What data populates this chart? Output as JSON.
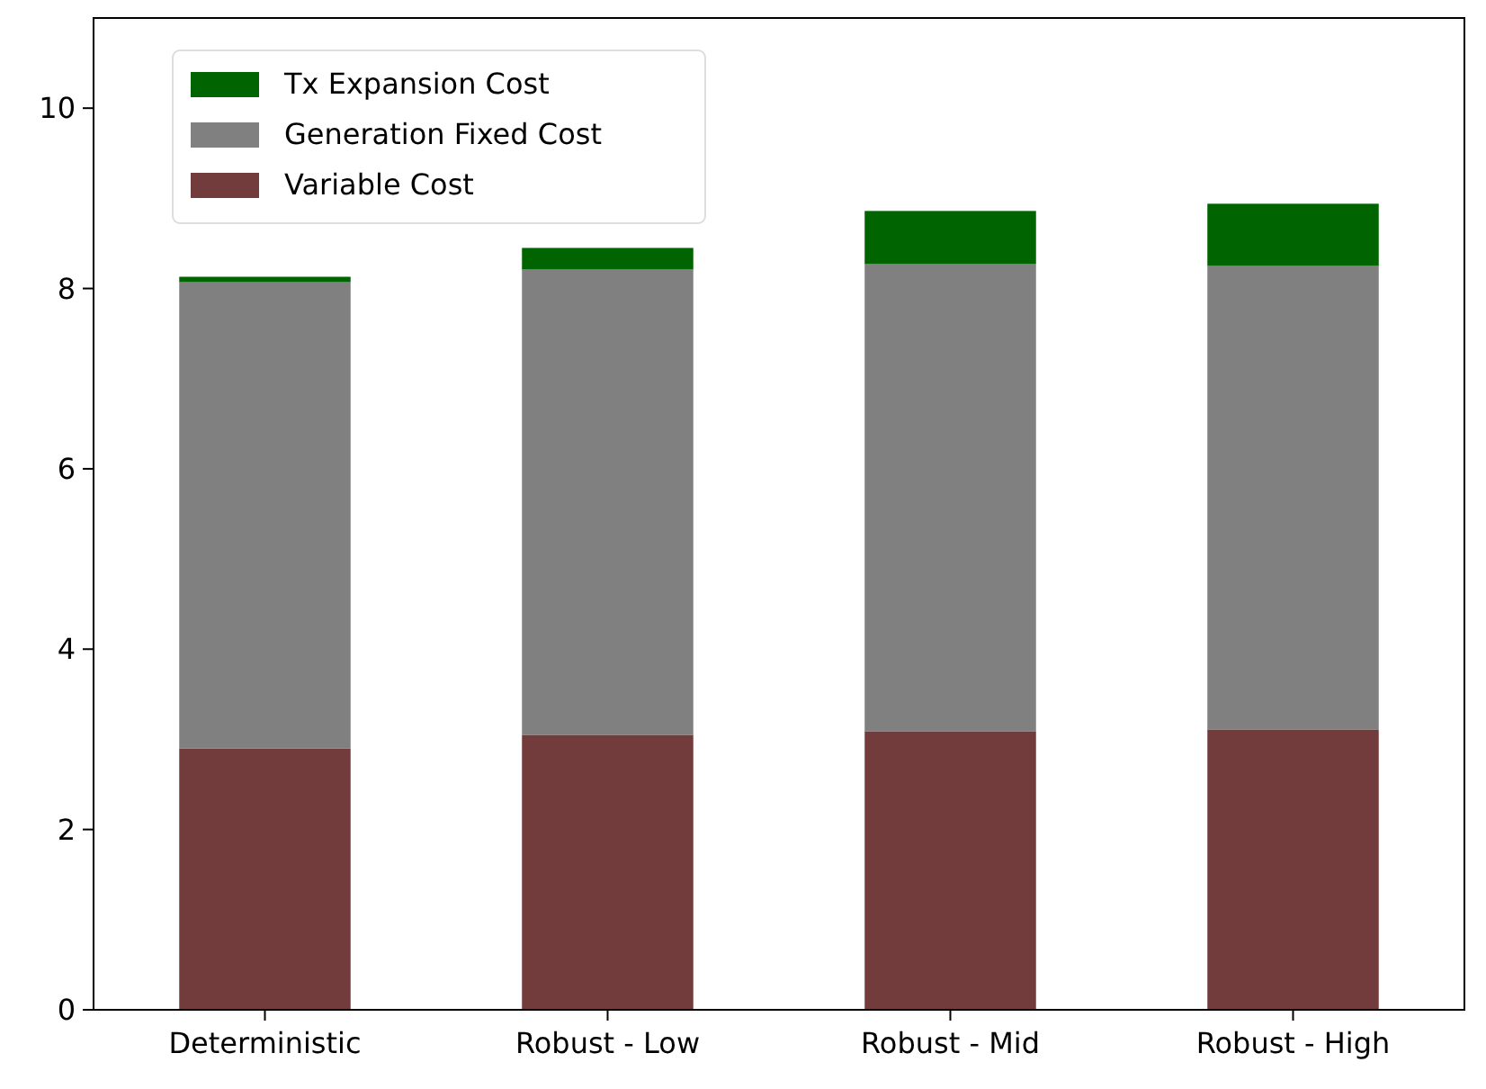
{
  "chart_data": {
    "type": "bar",
    "stacked": true,
    "categories": [
      "Deterministic",
      "Robust - Low",
      "Robust - Mid",
      "Robust - High"
    ],
    "series": [
      {
        "name": "Variable Cost",
        "color": "#733c3c",
        "values": [
          2.9,
          3.05,
          3.09,
          3.11
        ]
      },
      {
        "name": "Generation Fixed Cost",
        "color": "#808080",
        "values": [
          5.17,
          5.16,
          5.18,
          5.14
        ]
      },
      {
        "name": "Tx Expansion Cost",
        "color": "#006400",
        "values": [
          0.06,
          0.24,
          0.59,
          0.69
        ]
      }
    ],
    "ylim": [
      0,
      11
    ],
    "yticks": [
      0,
      2,
      4,
      6,
      8,
      10
    ],
    "legend": "top left",
    "grid": false
  }
}
